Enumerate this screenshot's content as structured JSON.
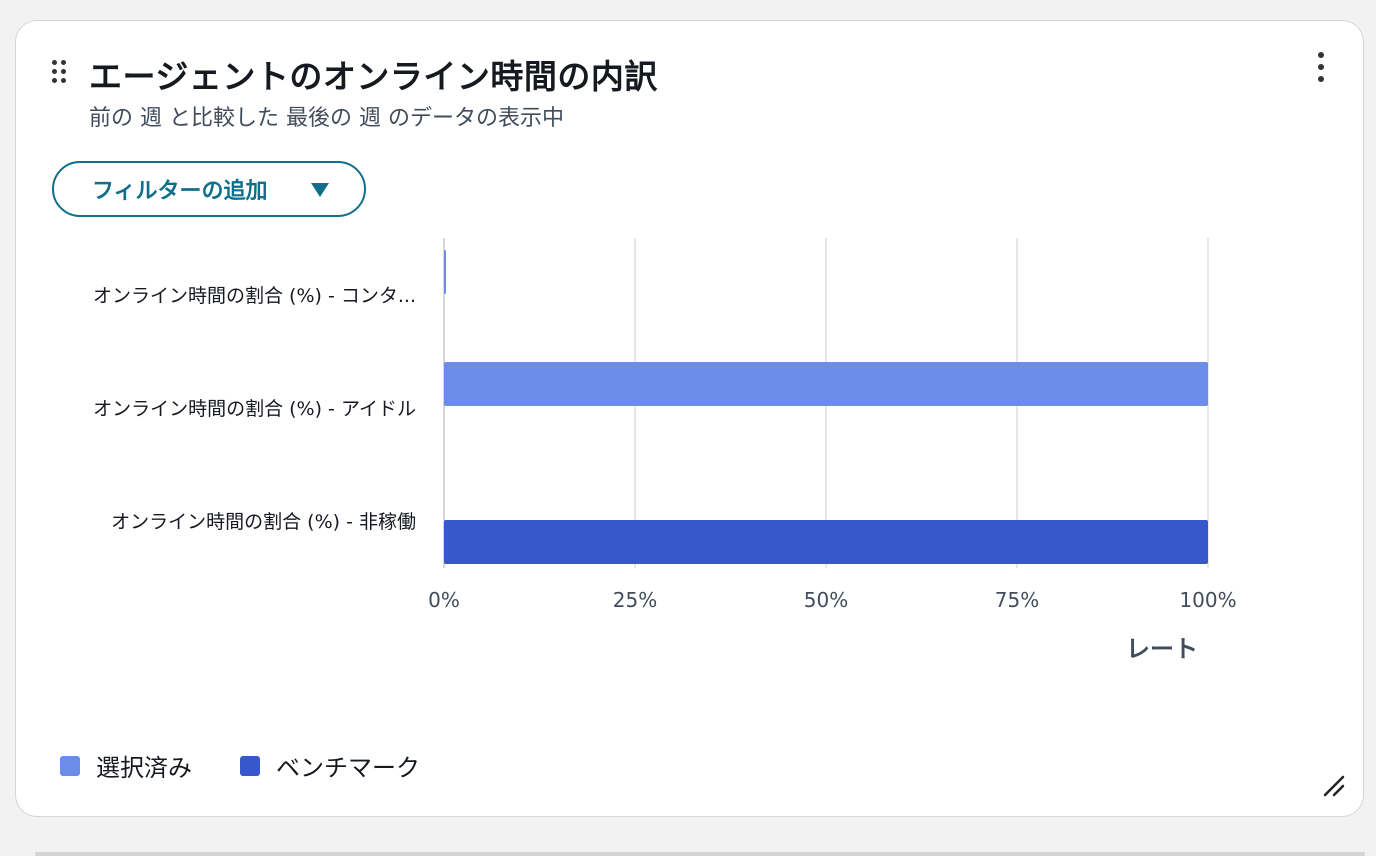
{
  "card": {
    "title": "エージェントのオンライン時間の内訳",
    "subtitle": "前の 週 と比較した 最後の 週 のデータの表示中",
    "filter_button_label": "フィルターの追加",
    "icons": [
      "drag-handle-icon",
      "more-vertical-icon",
      "caret-down-icon",
      "resize-handle-icon"
    ]
  },
  "chart_data": {
    "type": "bar",
    "orientation": "horizontal",
    "title": "",
    "xlabel": "レート",
    "ylabel": "",
    "xlim": [
      0,
      100
    ],
    "x_ticks": [
      0,
      25,
      50,
      75,
      100
    ],
    "x_tick_labels": [
      "0%",
      "25%",
      "50%",
      "75%",
      "100%"
    ],
    "grid": true,
    "categories": [
      "オンライン時間の割合 (%) - コンタ...",
      "オンライン時間の割合 (%) - アイドル",
      "オンライン時間の割合 (%) - 非稼働"
    ],
    "series": [
      {
        "name": "選択済み",
        "color": "#6b8ce8",
        "values": [
          0.2,
          100,
          0
        ]
      },
      {
        "name": "ベンチマーク",
        "color": "#3758cc",
        "values": [
          0,
          0,
          100
        ]
      }
    ],
    "legend_position": "bottom-left"
  }
}
